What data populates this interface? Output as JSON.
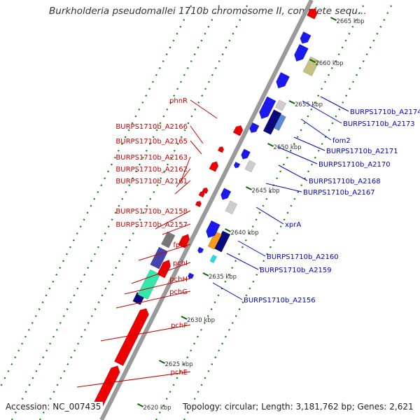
{
  "title": "Burkholderia pseudomallei 1710b chromosome II, complete sequ...",
  "footer": {
    "accession": "Accession: NC_007435",
    "summary": "Topology: circular; Length: 3,181,762 bp; Genes: 2,621"
  },
  "colors": {
    "backbone": "#999999",
    "forward_label": "#cc0000",
    "reverse_label": "#0000cc",
    "red_gene": "#ee0000",
    "blue_gene": "#1a1aee",
    "guide_dots": "#008800"
  },
  "ticks": [
    "2620 kbp",
    "2625 kbp",
    "2630 kbp",
    "2635 kbp",
    "2640 kbp",
    "2645 kbp",
    "2650 kbp",
    "2655 kbp",
    "2660 kbp",
    "2665 kbp"
  ],
  "left_labels": [
    "phnR",
    "BURPS1710b_A2166",
    "BURPS1710b_A2165",
    "BURPS1710b_A2163",
    "BURPS1710b_A2162",
    "BURPS1710b_A2161",
    "BURPS1710b_A2158",
    "BURPS1710b_A2157",
    "fptA",
    "pchI",
    "pchH",
    "pchG",
    "pchF",
    "pchE"
  ],
  "right_labels": [
    "BURPS1710b_A2174",
    "BURPS1710b_A2173",
    "fom2",
    "BURPS1710b_A2171",
    "BURPS1710b_A2170",
    "BURPS1710b_A2168",
    "BURPS1710b_A2167",
    "xprA",
    "BURPS1710b_A2160",
    "BURPS1710b_A2159",
    "BURPS1710b_A2156"
  ]
}
